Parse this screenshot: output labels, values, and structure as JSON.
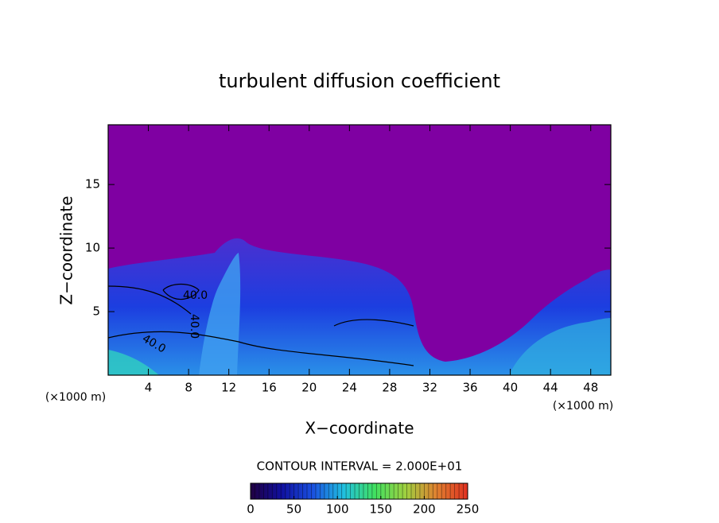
{
  "chart_data": {
    "type": "contour",
    "title": "turbulent diffusion coefficient",
    "x_label": "X−coordinate",
    "y_label": "Z−coordinate",
    "x_unit": "(×1000 m)",
    "y_unit": "(×1000 m)",
    "xlim": [
      0,
      50
    ],
    "xticks": [
      4,
      8,
      12,
      16,
      20,
      24,
      28,
      32,
      36,
      40,
      44,
      48
    ],
    "ylim": [
      0,
      19.7
    ],
    "yticks": [
      5,
      10,
      15
    ],
    "background_color": "#7f00a2",
    "contour_note": "CONTOUR INTERVAL = 2.000E+01",
    "contour_labels": [
      "40.0",
      "40.0",
      "40.0"
    ],
    "colorbar": {
      "clim": [
        0,
        250
      ],
      "ticks": [
        0,
        50,
        100,
        150,
        200,
        250
      ],
      "colors": [
        "#200040",
        "#1010a0",
        "#1a50e0",
        "#20c0e0",
        "#40e060",
        "#a0d040",
        "#e08030",
        "#e03020"
      ]
    }
  }
}
